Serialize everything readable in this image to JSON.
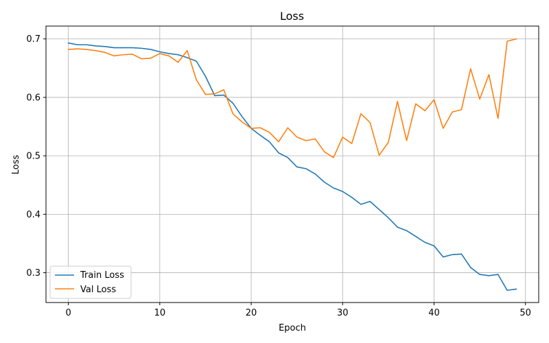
{
  "chart_data": {
    "type": "line",
    "title": "Loss",
    "xlabel": "Epoch",
    "ylabel": "Loss",
    "xlim": [
      -2.45,
      51.45
    ],
    "ylim": [
      0.249,
      0.722
    ],
    "xticks": [
      0,
      10,
      20,
      30,
      40,
      50
    ],
    "yticks": [
      0.3,
      0.4,
      0.5,
      0.6,
      0.7
    ],
    "xtick_labels": [
      "0",
      "10",
      "20",
      "30",
      "40",
      "50"
    ],
    "ytick_labels": [
      "0.3",
      "0.4",
      "0.5",
      "0.6",
      "0.7"
    ],
    "grid": true,
    "legend_position": "lower-left",
    "x": [
      0,
      1,
      2,
      3,
      4,
      5,
      6,
      7,
      8,
      9,
      10,
      11,
      12,
      13,
      14,
      15,
      16,
      17,
      18,
      19,
      20,
      21,
      22,
      23,
      24,
      25,
      26,
      27,
      28,
      29,
      30,
      31,
      32,
      33,
      34,
      35,
      36,
      37,
      38,
      39,
      40,
      41,
      42,
      43,
      44,
      45,
      46,
      47,
      48,
      49
    ],
    "series": [
      {
        "name": "Train Loss",
        "color": "#1f77b4",
        "values": [
          0.693,
          0.69,
          0.69,
          0.688,
          0.687,
          0.685,
          0.685,
          0.685,
          0.684,
          0.682,
          0.678,
          0.675,
          0.673,
          0.668,
          0.662,
          0.636,
          0.603,
          0.604,
          0.59,
          0.567,
          0.547,
          0.535,
          0.524,
          0.505,
          0.497,
          0.481,
          0.478,
          0.469,
          0.455,
          0.445,
          0.439,
          0.429,
          0.417,
          0.422,
          0.408,
          0.394,
          0.378,
          0.372,
          0.362,
          0.352,
          0.346,
          0.327,
          0.331,
          0.332,
          0.309,
          0.297,
          0.295,
          0.297,
          0.27,
          0.272
        ]
      },
      {
        "name": "Val Loss",
        "color": "#ff7f0e",
        "values": [
          0.682,
          0.683,
          0.682,
          0.68,
          0.677,
          0.671,
          0.673,
          0.674,
          0.666,
          0.667,
          0.675,
          0.671,
          0.66,
          0.68,
          0.63,
          0.605,
          0.606,
          0.613,
          0.572,
          0.558,
          0.547,
          0.548,
          0.54,
          0.524,
          0.548,
          0.532,
          0.526,
          0.529,
          0.507,
          0.497,
          0.532,
          0.521,
          0.572,
          0.557,
          0.501,
          0.523,
          0.593,
          0.526,
          0.589,
          0.577,
          0.596,
          0.547,
          0.575,
          0.579,
          0.649,
          0.597,
          0.639,
          0.564,
          0.696,
          0.7
        ]
      }
    ]
  }
}
